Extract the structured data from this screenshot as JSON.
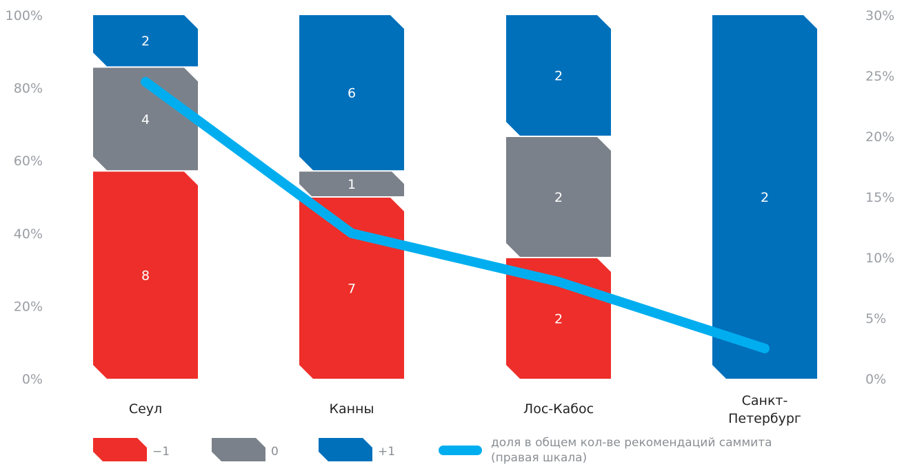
{
  "chart_data": {
    "type": "bar",
    "stacked": true,
    "categories": [
      "Сеул",
      "Канны",
      "Лос-Кабос",
      "Санкт-Петербург"
    ],
    "series": [
      {
        "name": "−1",
        "color": "#ee2e2a",
        "counts": [
          8,
          7,
          2,
          0
        ]
      },
      {
        "name": "0",
        "color": "#7b818a",
        "counts": [
          4,
          1,
          2,
          0
        ]
      },
      {
        "name": "+1",
        "color": "#0070bb",
        "counts": [
          2,
          6,
          2,
          2
        ]
      }
    ],
    "line": {
      "name": "доля в общем кол-ве рекомендаций саммита (правая шкала)",
      "axis": "right",
      "color": "#00aeef",
      "values": [
        24.5,
        12,
        8,
        2.5
      ]
    },
    "left_axis": {
      "ticks": [
        "0%",
        "20%",
        "40%",
        "60%",
        "80%",
        "100%"
      ],
      "min": 0,
      "max": 100
    },
    "right_axis": {
      "ticks": [
        "0%",
        "5%",
        "10%",
        "15%",
        "20%",
        "25%",
        "30%"
      ],
      "min": 0,
      "max": 30
    },
    "legend_placement": "bottom",
    "grid": false
  }
}
